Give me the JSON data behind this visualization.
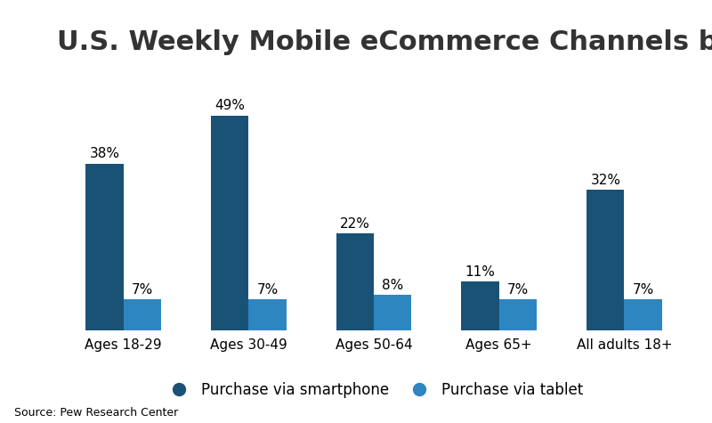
{
  "title": "U.S. Weekly Mobile eCommerce Channels by Age",
  "categories": [
    "Ages 18-29",
    "Ages 30-49",
    "Ages 50-64",
    "Ages 65+",
    "All adults 18+"
  ],
  "smartphone_values": [
    38,
    49,
    22,
    11,
    32
  ],
  "tablet_values": [
    7,
    7,
    8,
    7,
    7
  ],
  "smartphone_color": "#1a5276",
  "tablet_color": "#2e86c1",
  "background_color": "#ffffff",
  "title_fontsize": 22,
  "title_color": "#333333",
  "tick_fontsize": 11,
  "bar_label_fontsize": 11,
  "legend_fontsize": 12,
  "source_text": "Source: Pew Research Center",
  "source_fontsize": 9,
  "ylim": [
    0,
    58
  ],
  "bar_width": 0.3,
  "legend_labels": [
    "Purchase via smartphone",
    "Purchase via tablet"
  ]
}
